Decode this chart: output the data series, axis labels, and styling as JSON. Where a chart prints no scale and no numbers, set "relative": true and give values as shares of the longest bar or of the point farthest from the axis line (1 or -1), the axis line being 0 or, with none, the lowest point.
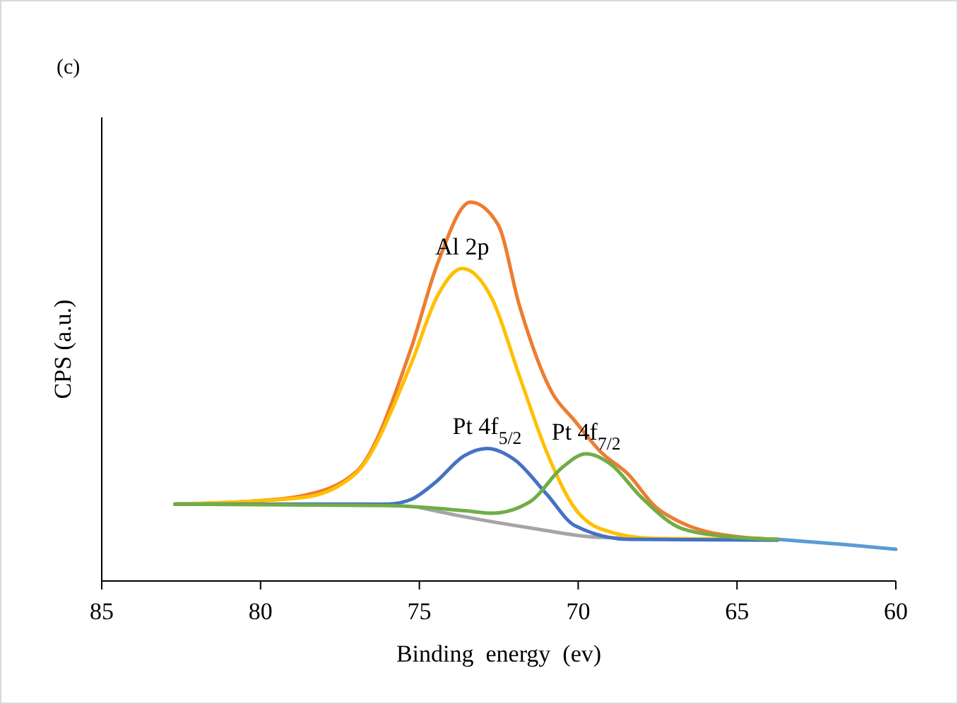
{
  "chart_data": {
    "type": "line",
    "title": "(c)",
    "xlabel": "Binding  energy  (ev)",
    "ylabel": "CPS (a.u.)",
    "relative": true,
    "xlim": [
      85,
      60
    ],
    "xticks": [
      85,
      80,
      75,
      70,
      65,
      60
    ],
    "grid": false,
    "marker": "none",
    "line_style": "solid",
    "series": [
      {
        "color": "#5b9bd5",
        "x": [
          63.72,
          61.58,
          60
        ],
        "values": [
          0.11,
          0.096,
          0.084
        ]
      },
      {
        "color": "#ed7d31",
        "x": [
          82.7,
          80.4,
          78.69,
          76.98,
          75.27,
          74.41,
          73.39,
          72.53,
          71.85,
          70.82,
          70.13,
          69.28,
          68.43,
          67.57,
          66.72,
          65.0,
          63.72
        ],
        "values": [
          0.203,
          0.21,
          0.225,
          0.289,
          0.612,
          0.842,
          1.0,
          0.942,
          0.727,
          0.497,
          0.425,
          0.34,
          0.282,
          0.196,
          0.153,
          0.117,
          0.11
        ]
      },
      {
        "color": "#a5a5a5",
        "x": [
          75.0,
          73.6,
          71.5,
          69.3,
          63.72
        ],
        "values": [
          0.194,
          0.17,
          0.14,
          0.115,
          0.108
        ]
      },
      {
        "color": "#ffc000",
        "x": [
          82.7,
          78.7,
          77.0,
          75.27,
          74.41,
          73.65,
          72.7,
          71.85,
          70.99,
          70.14,
          69.3,
          67.57,
          63.72
        ],
        "values": [
          0.203,
          0.22,
          0.284,
          0.571,
          0.756,
          0.825,
          0.743,
          0.541,
          0.34,
          0.196,
          0.138,
          0.112,
          0.11
        ]
      },
      {
        "color": "#4472c4",
        "x": [
          82.7,
          76.0,
          75.27,
          74.5,
          73.6,
          72.87,
          72.0,
          71.0,
          70.1,
          68.4,
          63.72
        ],
        "values": [
          0.203,
          0.203,
          0.215,
          0.26,
          0.33,
          0.35,
          0.32,
          0.23,
          0.146,
          0.11,
          0.108
        ]
      },
      {
        "color": "#70ad47",
        "x": [
          82.7,
          76,
          73.5,
          72.7,
          71.5,
          70.5,
          69.75,
          69.0,
          68.0,
          66.72,
          65,
          63.72
        ],
        "values": [
          0.203,
          0.199,
          0.185,
          0.179,
          0.21,
          0.3,
          0.336,
          0.31,
          0.22,
          0.138,
          0.115,
          0.11
        ]
      }
    ],
    "annotations": [
      {
        "text": "Al 2p",
        "x": 73.65,
        "y": 0.825
      },
      {
        "text": "Pt 4f$_{5/2}$",
        "x": 72.87,
        "y": 0.35
      },
      {
        "text": "Pt 4f$_{7/2}$",
        "x": 69.75,
        "y": 0.336
      }
    ]
  }
}
